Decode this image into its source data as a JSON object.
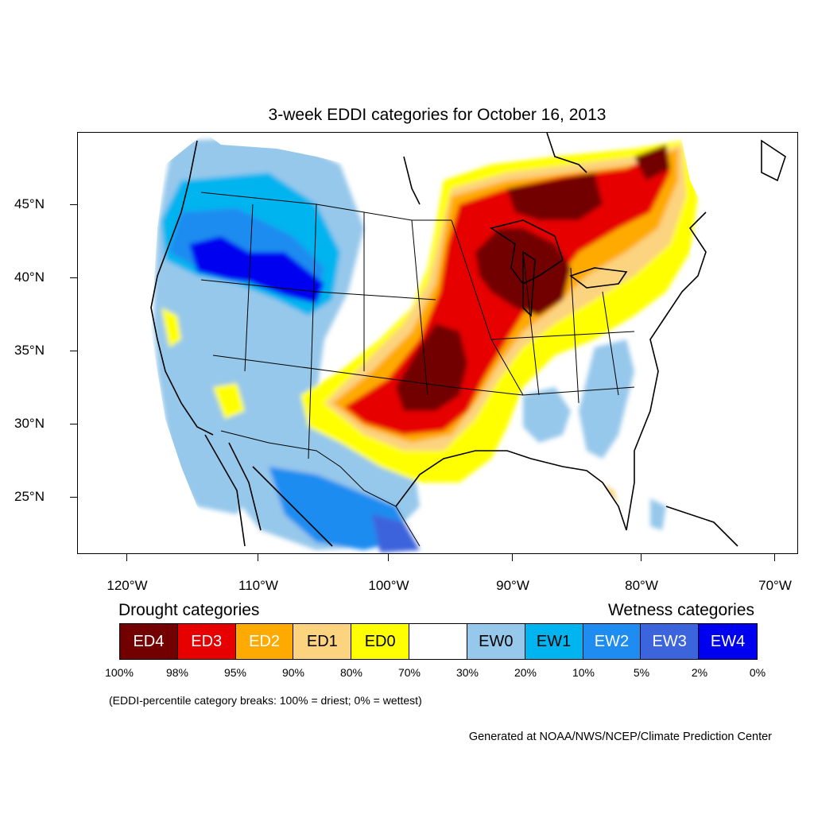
{
  "title": "3-week EDDI categories for October 16, 2013",
  "lat_labels": [
    "45°N",
    "40°N",
    "35°N",
    "30°N",
    "25°N"
  ],
  "lon_labels": [
    "120°W",
    "110°W",
    "100°W",
    "90°W",
    "80°W",
    "70°W"
  ],
  "legend": {
    "drought_title": "Drought categories",
    "wetness_title": "Wetness categories",
    "categories": [
      {
        "label": "ED4",
        "color": "#730000",
        "text_color": "#ffffff"
      },
      {
        "label": "ED3",
        "color": "#e60000",
        "text_color": "#ffffff"
      },
      {
        "label": "ED2",
        "color": "#ffaa00",
        "text_color": "#ffffff"
      },
      {
        "label": "ED1",
        "color": "#fcd37f",
        "text_color": "#000000"
      },
      {
        "label": "ED0",
        "color": "#ffff00",
        "text_color": "#000000"
      },
      {
        "label": "",
        "color": "#ffffff",
        "text_color": "#000000"
      },
      {
        "label": "EW0",
        "color": "#96c8eb",
        "text_color": "#000000"
      },
      {
        "label": "EW1",
        "color": "#00b4f0",
        "text_color": "#000000"
      },
      {
        "label": "EW2",
        "color": "#1e8cf0",
        "text_color": "#ffffff"
      },
      {
        "label": "EW3",
        "color": "#3c64dc",
        "text_color": "#ffffff"
      },
      {
        "label": "EW4",
        "color": "#0000f0",
        "text_color": "#ffffff"
      }
    ],
    "percent_breaks": [
      "100%",
      "98%",
      "95%",
      "90%",
      "80%",
      "70%",
      "30%",
      "20%",
      "10%",
      "5%",
      "2%",
      "0%"
    ]
  },
  "breaks_note": "(EDDI-percentile category breaks: 100% = driest; 0% = wettest)",
  "credit": "Generated at NOAA/NWS/NCEP/Climate Prediction Center"
}
